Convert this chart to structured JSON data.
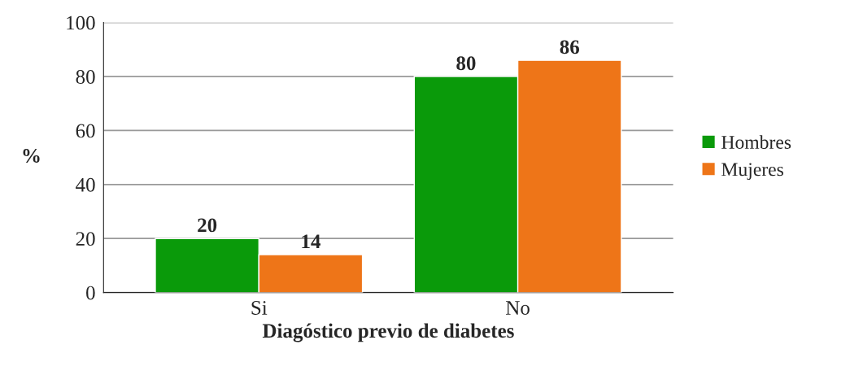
{
  "chart_data": {
    "type": "bar",
    "xlabel": "Diagóstico previo de diabetes",
    "ylabel": "%",
    "categories": [
      "Si",
      "No"
    ],
    "series": [
      {
        "name": "Hombres",
        "color": "#0a9a0a",
        "values": [
          20,
          80
        ]
      },
      {
        "name": "Mujeres",
        "color": "#ee7518",
        "values": [
          14,
          86
        ]
      }
    ],
    "ylim": [
      0,
      100
    ],
    "yticks": [
      0,
      20,
      40,
      60,
      80,
      100
    ],
    "grid": "y",
    "legend": "right",
    "data_labels": true
  }
}
